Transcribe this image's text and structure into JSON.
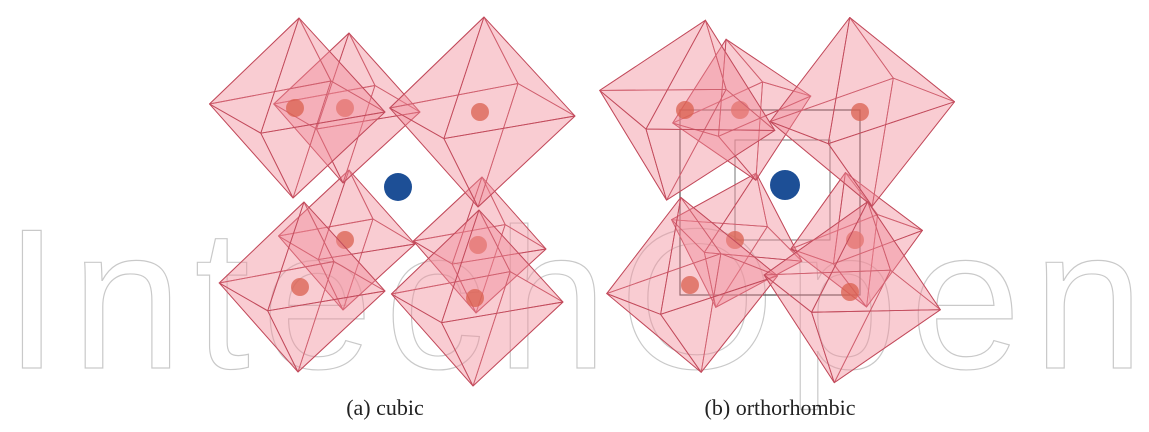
{
  "watermark": "IntechOpen",
  "panels": [
    {
      "caption": "(a) cubic"
    },
    {
      "caption": "(b) orthorhombic"
    }
  ]
}
